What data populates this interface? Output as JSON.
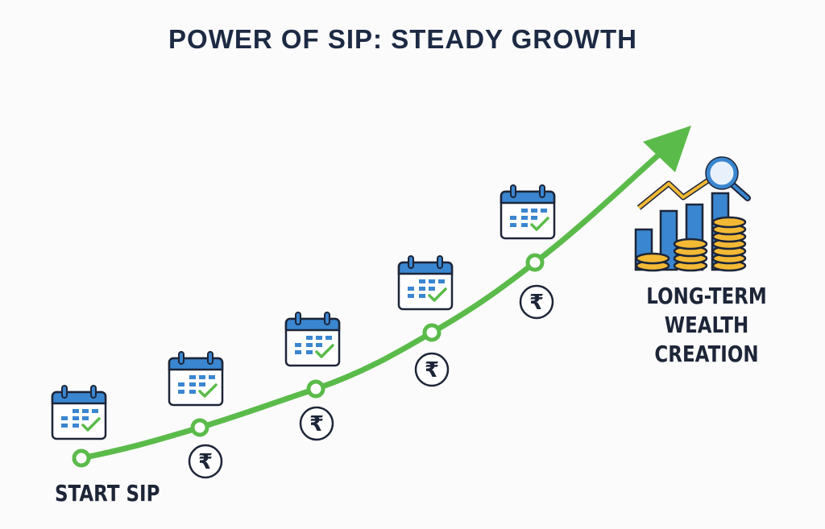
{
  "title": "POWER OF SIP: STEADY GROWTH",
  "start_label": "START SIP",
  "end_label": [
    "LONG-TERM",
    "WEALTH CREATION"
  ],
  "milestones": 5,
  "icons": {
    "calendar": "calendar-check-icon",
    "currency": "rupee-icon",
    "goal": "growth-chart-coins-magnifier-icon"
  },
  "colors": {
    "curve": "#5bbb4a",
    "title": "#1d2a44",
    "calendar_blue": "#3a86d0",
    "coin": "#f3b935",
    "outline": "#1d2538"
  },
  "currency_symbol": "₹"
}
